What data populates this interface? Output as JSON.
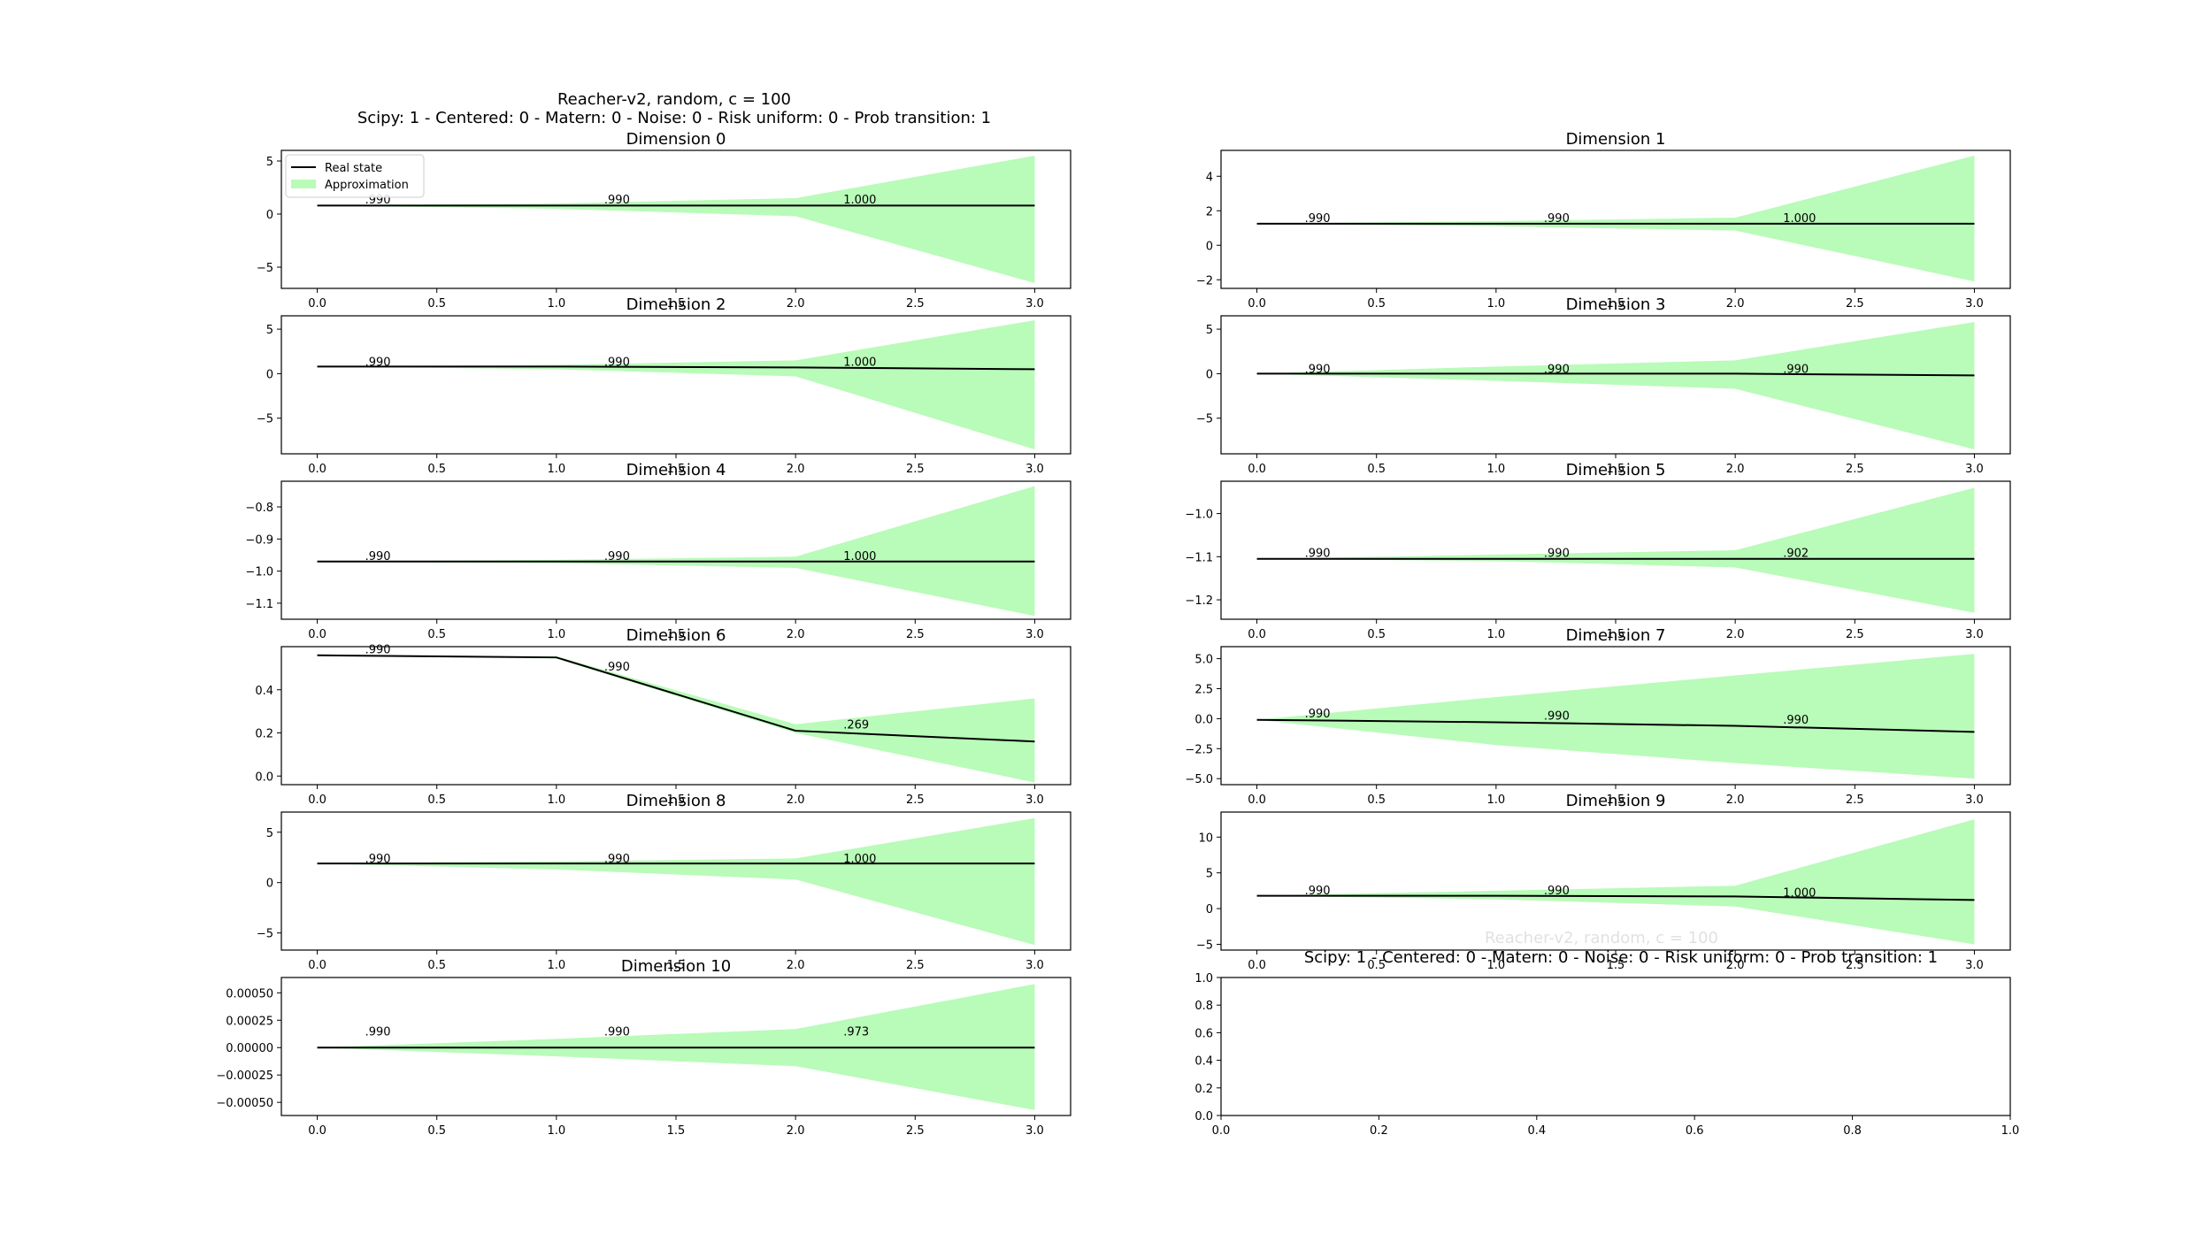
{
  "figure": {
    "suptitle_line1": "Reacher-v2, random, c = 100",
    "suptitle_line2": "Scipy: 1 - Centered: 0 - Matern: 0 - Noise: 0 - Risk uniform: 0 - Prob transition: 1",
    "ghost_title_line1": "Reacher-v2, random, c = 100",
    "ghost_title_line2": "Scipy: 1 - Centered: 0 - Matern: 0 - Noise: 0 - Risk uniform: 0 - Prob transition: 1",
    "legend": {
      "line_label": "Real state",
      "fill_label": "Approximation"
    },
    "colors": {
      "line": "#000000",
      "band": "#b9fbb9"
    }
  },
  "chart_data": [
    {
      "type": "line",
      "title": "Dimension 0",
      "x": [
        0,
        1,
        2,
        3
      ],
      "series": [
        {
          "name": "Real state",
          "values": [
            0.8,
            0.8,
            0.8,
            0.8
          ]
        },
        {
          "name": "Approximation",
          "lower": [
            0.8,
            0.5,
            -0.2,
            -6.5
          ],
          "upper": [
            0.8,
            1.0,
            1.5,
            5.5
          ]
        }
      ],
      "annotations": [
        {
          "x": 0.2,
          "y": 1.0,
          "text": ".990"
        },
        {
          "x": 1.2,
          "y": 1.0,
          "text": ".990"
        },
        {
          "x": 2.2,
          "y": 1.0,
          "text": "1.000"
        }
      ],
      "xlim": [
        -0.15,
        3.15
      ],
      "ylim": [
        -7,
        6
      ],
      "xticks": [
        0.0,
        0.5,
        1.0,
        1.5,
        2.0,
        2.5,
        3.0
      ],
      "xticklabels": [
        "0.0",
        "0.5",
        "1.0",
        "1.5",
        "2.0",
        "2.5",
        "3.0"
      ],
      "yticks": [
        -5,
        0,
        5
      ],
      "yticklabels": [
        "−5",
        "0",
        "5"
      ],
      "legend": "upper-left"
    },
    {
      "type": "line",
      "title": "Dimension 1",
      "x": [
        0,
        1,
        2,
        3
      ],
      "series": [
        {
          "name": "Real state",
          "values": [
            1.25,
            1.25,
            1.25,
            1.25
          ]
        },
        {
          "name": "Approximation",
          "lower": [
            1.25,
            1.1,
            0.85,
            -2.1
          ],
          "upper": [
            1.25,
            1.4,
            1.6,
            5.2
          ]
        }
      ],
      "annotations": [
        {
          "x": 0.2,
          "y": 1.35,
          "text": ".990"
        },
        {
          "x": 1.2,
          "y": 1.35,
          "text": ".990"
        },
        {
          "x": 2.2,
          "y": 1.35,
          "text": "1.000"
        }
      ],
      "xlim": [
        -0.15,
        3.15
      ],
      "ylim": [
        -2.5,
        5.5
      ],
      "xticks": [
        0.0,
        0.5,
        1.0,
        1.5,
        2.0,
        2.5,
        3.0
      ],
      "xticklabels": [
        "0.0",
        "0.5",
        "1.0",
        "1.5",
        "2.0",
        "2.5",
        "3.0"
      ],
      "yticks": [
        -2,
        0,
        2,
        4
      ],
      "yticklabels": [
        "−2",
        "0",
        "2",
        "4"
      ]
    },
    {
      "type": "line",
      "title": "Dimension 2",
      "x": [
        0,
        1,
        2,
        3
      ],
      "series": [
        {
          "name": "Real state",
          "values": [
            0.8,
            0.8,
            0.7,
            0.5
          ]
        },
        {
          "name": "Approximation",
          "lower": [
            0.8,
            0.5,
            -0.3,
            -8.5
          ],
          "upper": [
            0.8,
            1.0,
            1.5,
            6.0
          ]
        }
      ],
      "annotations": [
        {
          "x": 0.2,
          "y": 0.9,
          "text": ".990"
        },
        {
          "x": 1.2,
          "y": 0.9,
          "text": ".990"
        },
        {
          "x": 2.2,
          "y": 0.9,
          "text": "1.000"
        }
      ],
      "xlim": [
        -0.15,
        3.15
      ],
      "ylim": [
        -9,
        6.5
      ],
      "xticks": [
        0.0,
        0.5,
        1.0,
        1.5,
        2.0,
        2.5,
        3.0
      ],
      "xticklabels": [
        "0.0",
        "0.5",
        "1.0",
        "1.5",
        "2.0",
        "2.5",
        "3.0"
      ],
      "yticks": [
        -5,
        0,
        5
      ],
      "yticklabels": [
        "−5",
        "0",
        "5"
      ]
    },
    {
      "type": "line",
      "title": "Dimension 3",
      "x": [
        0,
        1,
        2,
        3
      ],
      "series": [
        {
          "name": "Real state",
          "values": [
            0.0,
            0.0,
            0.0,
            -0.2
          ]
        },
        {
          "name": "Approximation",
          "lower": [
            0.0,
            -0.8,
            -1.7,
            -8.5
          ],
          "upper": [
            0.0,
            0.8,
            1.5,
            5.8
          ]
        }
      ],
      "annotations": [
        {
          "x": 0.2,
          "y": 0.1,
          "text": ".990"
        },
        {
          "x": 1.2,
          "y": 0.1,
          "text": ".990"
        },
        {
          "x": 2.2,
          "y": 0.1,
          "text": ".990"
        }
      ],
      "xlim": [
        -0.15,
        3.15
      ],
      "ylim": [
        -9,
        6.5
      ],
      "xticks": [
        0.0,
        0.5,
        1.0,
        1.5,
        2.0,
        2.5,
        3.0
      ],
      "xticklabels": [
        "0.0",
        "0.5",
        "1.0",
        "1.5",
        "2.0",
        "2.5",
        "3.0"
      ],
      "yticks": [
        -5,
        0,
        5
      ],
      "yticklabels": [
        "−5",
        "0",
        "5"
      ]
    },
    {
      "type": "line",
      "title": "Dimension 4",
      "x": [
        0,
        1,
        2,
        3
      ],
      "series": [
        {
          "name": "Real state",
          "values": [
            -0.97,
            -0.97,
            -0.97,
            -0.97
          ]
        },
        {
          "name": "Approximation",
          "lower": [
            -0.97,
            -0.975,
            -0.99,
            -1.14
          ],
          "upper": [
            -0.97,
            -0.965,
            -0.955,
            -0.735
          ]
        }
      ],
      "annotations": [
        {
          "x": 0.2,
          "y": -0.965,
          "text": ".990"
        },
        {
          "x": 1.2,
          "y": -0.965,
          "text": ".990"
        },
        {
          "x": 2.2,
          "y": -0.965,
          "text": "1.000"
        }
      ],
      "xlim": [
        -0.15,
        3.15
      ],
      "ylim": [
        -1.15,
        -0.72
      ],
      "xticks": [
        0.0,
        0.5,
        1.0,
        1.5,
        2.0,
        2.5,
        3.0
      ],
      "xticklabels": [
        "0.0",
        "0.5",
        "1.0",
        "1.5",
        "2.0",
        "2.5",
        "3.0"
      ],
      "yticks": [
        -1.1,
        -1.0,
        -0.9,
        -0.8
      ],
      "yticklabels": [
        "−1.1",
        "−1.0",
        "−0.9",
        "−0.8"
      ]
    },
    {
      "type": "line",
      "title": "Dimension 5",
      "x": [
        0,
        1,
        2,
        3
      ],
      "series": [
        {
          "name": "Real state",
          "values": [
            -1.105,
            -1.105,
            -1.105,
            -1.105
          ]
        },
        {
          "name": "Approximation",
          "lower": [
            -1.105,
            -1.11,
            -1.125,
            -1.23
          ],
          "upper": [
            -1.105,
            -1.095,
            -1.085,
            -0.94
          ]
        }
      ],
      "annotations": [
        {
          "x": 0.2,
          "y": -1.1,
          "text": ".990"
        },
        {
          "x": 1.2,
          "y": -1.1,
          "text": ".990"
        },
        {
          "x": 2.2,
          "y": -1.1,
          "text": ".902"
        }
      ],
      "xlim": [
        -0.15,
        3.15
      ],
      "ylim": [
        -1.245,
        -0.925
      ],
      "xticks": [
        0.0,
        0.5,
        1.0,
        1.5,
        2.0,
        2.5,
        3.0
      ],
      "xticklabels": [
        "0.0",
        "0.5",
        "1.0",
        "1.5",
        "2.0",
        "2.5",
        "3.0"
      ],
      "yticks": [
        -1.2,
        -1.1,
        -1.0
      ],
      "yticklabels": [
        "−1.2",
        "−1.1",
        "−1.0"
      ]
    },
    {
      "type": "line",
      "title": "Dimension 6",
      "x": [
        0,
        1,
        2,
        3
      ],
      "series": [
        {
          "name": "Real state",
          "values": [
            0.56,
            0.55,
            0.21,
            0.16
          ]
        },
        {
          "name": "Approximation",
          "lower": [
            0.56,
            0.545,
            0.2,
            -0.03
          ],
          "upper": [
            0.56,
            0.555,
            0.24,
            0.36
          ]
        }
      ],
      "annotations": [
        {
          "x": 0.2,
          "y": 0.57,
          "text": ".990"
        },
        {
          "x": 1.2,
          "y": 0.49,
          "text": ".990"
        },
        {
          "x": 2.2,
          "y": 0.22,
          "text": ".269"
        }
      ],
      "xlim": [
        -0.15,
        3.15
      ],
      "ylim": [
        -0.04,
        0.6
      ],
      "xticks": [
        0.0,
        0.5,
        1.0,
        1.5,
        2.0,
        2.5,
        3.0
      ],
      "xticklabels": [
        "0.0",
        "0.5",
        "1.0",
        "1.5",
        "2.0",
        "2.5",
        "3.0"
      ],
      "yticks": [
        0.0,
        0.2,
        0.4
      ],
      "yticklabels": [
        "0.0",
        "0.2",
        "0.4"
      ]
    },
    {
      "type": "line",
      "title": "Dimension 7",
      "x": [
        0,
        1,
        2,
        3
      ],
      "series": [
        {
          "name": "Real state",
          "values": [
            -0.1,
            -0.3,
            -0.6,
            -1.1
          ]
        },
        {
          "name": "Approximation",
          "lower": [
            -0.1,
            -2.2,
            -3.7,
            -5.0
          ],
          "upper": [
            -0.1,
            1.8,
            3.6,
            5.4
          ]
        }
      ],
      "annotations": [
        {
          "x": 0.2,
          "y": 0.1,
          "text": ".990"
        },
        {
          "x": 1.2,
          "y": -0.1,
          "text": ".990"
        },
        {
          "x": 2.2,
          "y": -0.4,
          "text": ".990"
        }
      ],
      "xlim": [
        -0.15,
        3.15
      ],
      "ylim": [
        -5.5,
        6.0
      ],
      "xticks": [
        0.0,
        0.5,
        1.0,
        1.5,
        2.0,
        2.5,
        3.0
      ],
      "xticklabels": [
        "0.0",
        "0.5",
        "1.0",
        "1.5",
        "2.0",
        "2.5",
        "3.0"
      ],
      "yticks": [
        -5.0,
        -2.5,
        0.0,
        2.5,
        5.0
      ],
      "yticklabels": [
        "−5.0",
        "−2.5",
        "0.0",
        "2.5",
        "5.0"
      ]
    },
    {
      "type": "line",
      "title": "Dimension 8",
      "x": [
        0,
        1,
        2,
        3
      ],
      "series": [
        {
          "name": "Real state",
          "values": [
            1.9,
            1.9,
            1.9,
            1.9
          ]
        },
        {
          "name": "Approximation",
          "lower": [
            1.9,
            1.3,
            0.3,
            -6.2
          ],
          "upper": [
            1.9,
            2.1,
            2.4,
            6.4
          ]
        }
      ],
      "annotations": [
        {
          "x": 0.2,
          "y": 2.0,
          "text": ".990"
        },
        {
          "x": 1.2,
          "y": 2.0,
          "text": ".990"
        },
        {
          "x": 2.2,
          "y": 2.0,
          "text": "1.000"
        }
      ],
      "xlim": [
        -0.15,
        3.15
      ],
      "ylim": [
        -6.7,
        7.0
      ],
      "xticks": [
        0.0,
        0.5,
        1.0,
        1.5,
        2.0,
        2.5,
        3.0
      ],
      "xticklabels": [
        "0.0",
        "0.5",
        "1.0",
        "1.5",
        "2.0",
        "2.5",
        "3.0"
      ],
      "yticks": [
        -5,
        0,
        5
      ],
      "yticklabels": [
        "−5",
        "0",
        "5"
      ]
    },
    {
      "type": "line",
      "title": "Dimension 9",
      "x": [
        0,
        1,
        2,
        3
      ],
      "series": [
        {
          "name": "Real state",
          "values": [
            1.8,
            1.8,
            1.7,
            1.2
          ]
        },
        {
          "name": "Approximation",
          "lower": [
            1.8,
            1.3,
            0.3,
            -5.0
          ],
          "upper": [
            1.8,
            2.5,
            3.2,
            12.5
          ]
        }
      ],
      "annotations": [
        {
          "x": 0.2,
          "y": 2.0,
          "text": ".990"
        },
        {
          "x": 1.2,
          "y": 2.0,
          "text": ".990"
        },
        {
          "x": 2.2,
          "y": 1.7,
          "text": "1.000"
        }
      ],
      "xlim": [
        -0.15,
        3.15
      ],
      "ylim": [
        -5.8,
        13.5
      ],
      "xticks": [
        0.0,
        0.5,
        1.0,
        1.5,
        2.0,
        2.5,
        3.0
      ],
      "xticklabels": [
        "0.0",
        "0.5",
        "1.0",
        "1.5",
        "2.0",
        "2.5",
        "3.0"
      ],
      "yticks": [
        -5,
        0,
        5,
        10
      ],
      "yticklabels": [
        "−5",
        "0",
        "5",
        "10"
      ]
    },
    {
      "type": "line",
      "title": "Dimension 10",
      "x": [
        0,
        1,
        2,
        3
      ],
      "series": [
        {
          "name": "Real state",
          "values": [
            0.0,
            0.0,
            0.0,
            0.0
          ]
        },
        {
          "name": "Approximation",
          "lower": [
            0.0,
            -8e-05,
            -0.00017,
            -0.00057
          ],
          "upper": [
            0.0,
            8e-05,
            0.00017,
            0.00058
          ]
        }
      ],
      "annotations": [
        {
          "x": 0.2,
          "y": 0.00011,
          "text": ".990"
        },
        {
          "x": 1.2,
          "y": 0.00011,
          "text": ".990"
        },
        {
          "x": 2.2,
          "y": 0.00011,
          "text": ".973"
        }
      ],
      "xlim": [
        -0.15,
        3.15
      ],
      "ylim": [
        -0.00062,
        0.00064
      ],
      "xticks": [
        0.0,
        0.5,
        1.0,
        1.5,
        2.0,
        2.5,
        3.0
      ],
      "xticklabels": [
        "0.0",
        "0.5",
        "1.0",
        "1.5",
        "2.0",
        "2.5",
        "3.0"
      ],
      "yticks": [
        -0.0005,
        -0.00025,
        0.0,
        0.00025,
        0.0005
      ],
      "yticklabels": [
        "−0.00050",
        "−0.00025",
        "0.00000",
        "0.00025",
        "0.00050"
      ]
    },
    {
      "type": "line",
      "title": "",
      "x": [],
      "series": [],
      "annotations": [],
      "xlim": [
        0,
        1
      ],
      "ylim": [
        0,
        1
      ],
      "xticks": [
        0.0,
        0.2,
        0.4,
        0.6,
        0.8,
        1.0
      ],
      "xticklabels": [
        "0.0",
        "0.2",
        "0.4",
        "0.6",
        "0.8",
        "1.0"
      ],
      "yticks": [
        0.0,
        0.2,
        0.4,
        0.6,
        0.8,
        1.0
      ],
      "yticklabels": [
        "0.0",
        "0.2",
        "0.4",
        "0.6",
        "0.8",
        "1.0"
      ]
    }
  ]
}
